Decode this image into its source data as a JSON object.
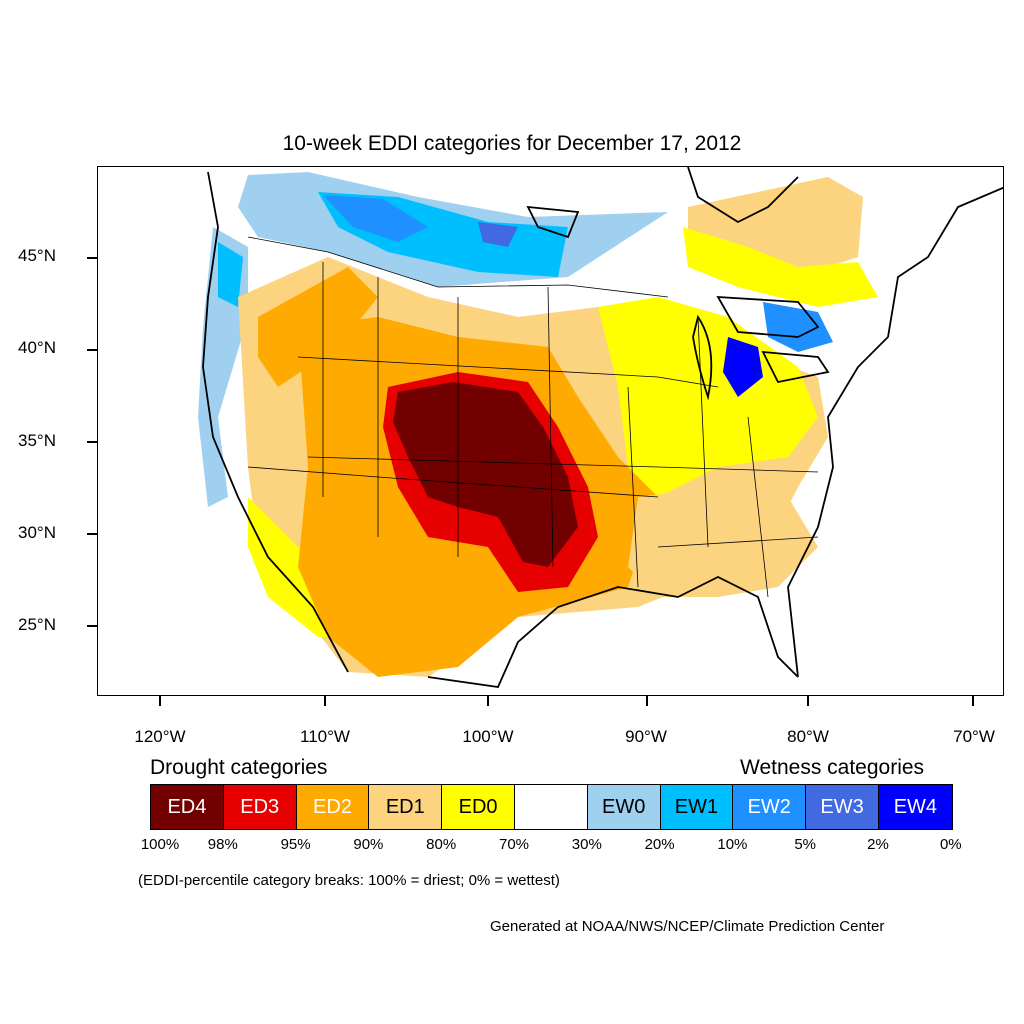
{
  "title": "10-week EDDI categories for December 17, 2012",
  "lat_labels": [
    "45°N",
    "40°N",
    "35°N",
    "30°N",
    "25°N"
  ],
  "lon_labels": [
    "120°W",
    "110°W",
    "100°W",
    "90°W",
    "80°W",
    "70°W"
  ],
  "drought_heading": "Drought categories",
  "wetness_heading": "Wetness categories",
  "categories": [
    {
      "label": "ED4",
      "color": "#730000",
      "text_color": "#ffffff"
    },
    {
      "label": "ED3",
      "color": "#e60000",
      "text_color": "#ffffff"
    },
    {
      "label": "ED2",
      "color": "#ffaa00",
      "text_color": "#ffffff"
    },
    {
      "label": "ED1",
      "color": "#fcd37f",
      "text_color": "#000000"
    },
    {
      "label": "ED0",
      "color": "#ffff00",
      "text_color": "#000000"
    },
    {
      "label": "",
      "color": "#ffffff",
      "text_color": "#000000"
    },
    {
      "label": "EW0",
      "color": "#9fd0f0",
      "text_color": "#000000"
    },
    {
      "label": "EW1",
      "color": "#00bfff",
      "text_color": "#000000"
    },
    {
      "label": "EW2",
      "color": "#1e90ff",
      "text_color": "#ffffff"
    },
    {
      "label": "EW3",
      "color": "#4169e1",
      "text_color": "#ffffff"
    },
    {
      "label": "EW4",
      "color": "#0000ff",
      "text_color": "#ffffff"
    }
  ],
  "percentile_breaks": [
    "100%",
    "98%",
    "95%",
    "90%",
    "80%",
    "70%",
    "30%",
    "20%",
    "10%",
    "5%",
    "2%",
    "0%"
  ],
  "note": "(EDDI-percentile category breaks: 100% = driest; 0% = wettest)",
  "credit": "Generated at NOAA/NWS/NCEP/Climate Prediction Center"
}
